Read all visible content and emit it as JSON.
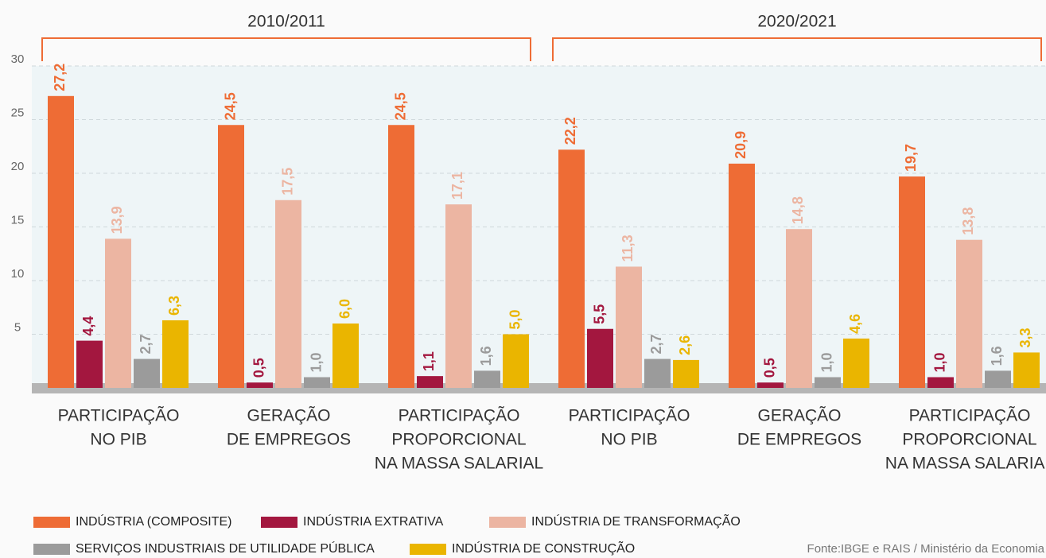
{
  "chart_data": {
    "type": "bar",
    "groups": [
      {
        "label": "2010/2011",
        "from": 0,
        "to": 2
      },
      {
        "label": "2020/2021",
        "from": 3,
        "to": 5
      }
    ],
    "categories": [
      [
        "PARTICIPAÇÃO",
        "NO PIB"
      ],
      [
        "GERAÇÃO",
        "DE EMPREGOS"
      ],
      [
        "PARTICIPAÇÃO",
        "PROPORCIONAL",
        "NA MASSA SALARIAL"
      ],
      [
        "PARTICIPAÇÃO",
        "NO PIB"
      ],
      [
        "GERAÇÃO",
        "DE EMPREGOS"
      ],
      [
        "PARTICIPAÇÃO",
        "PROPORCIONAL",
        "NA MASSA SALARIAL"
      ]
    ],
    "series": [
      {
        "name": "INDÚSTRIA (COMPOSITE)",
        "color": "#ee6c35",
        "values": [
          27.2,
          24.5,
          24.5,
          22.2,
          20.9,
          19.7
        ],
        "value_labels": [
          "27,2",
          "24,5",
          "24,5",
          "22,2",
          "20,9",
          "19,7"
        ]
      },
      {
        "name": "INDÚSTRIA EXTRATIVA",
        "color": "#a3173f",
        "values": [
          4.4,
          0.5,
          1.1,
          5.5,
          0.5,
          1.0
        ],
        "value_labels": [
          "4,4",
          "0,5",
          "1,1",
          "5,5",
          "0,5",
          "1,0"
        ]
      },
      {
        "name": "INDÚSTRIA DE TRANSFORMAÇÃO",
        "color": "#ecb5a2",
        "values": [
          13.9,
          17.5,
          17.1,
          11.3,
          14.8,
          13.8
        ],
        "value_labels": [
          "13,9",
          "17,5",
          "17,1",
          "11,3",
          "14,8",
          "13,8"
        ]
      },
      {
        "name": "SERVIÇOS INDUSTRIAIS DE UTILIDADE PÚBLICA",
        "color": "#9b9b9b",
        "values": [
          2.7,
          1.0,
          1.6,
          2.7,
          1.0,
          1.6
        ],
        "value_labels": [
          "2,7",
          "1,0",
          "1,6",
          "2,7",
          "1,0",
          "1,6"
        ]
      },
      {
        "name": "INDÚSTRIA DE CONSTRUÇÃO",
        "color": "#eab500",
        "values": [
          6.3,
          6.0,
          5.0,
          2.6,
          4.6,
          3.3
        ],
        "value_labels": [
          "6,3",
          "6,0",
          "5,0",
          "2,6",
          "4,6",
          "3,3"
        ]
      }
    ],
    "ylim": [
      0,
      30
    ],
    "yticks": [
      5,
      10,
      15,
      20,
      25,
      30
    ],
    "grid": true,
    "source": "Fonte:IBGE e RAIS / Ministério da Economia"
  }
}
